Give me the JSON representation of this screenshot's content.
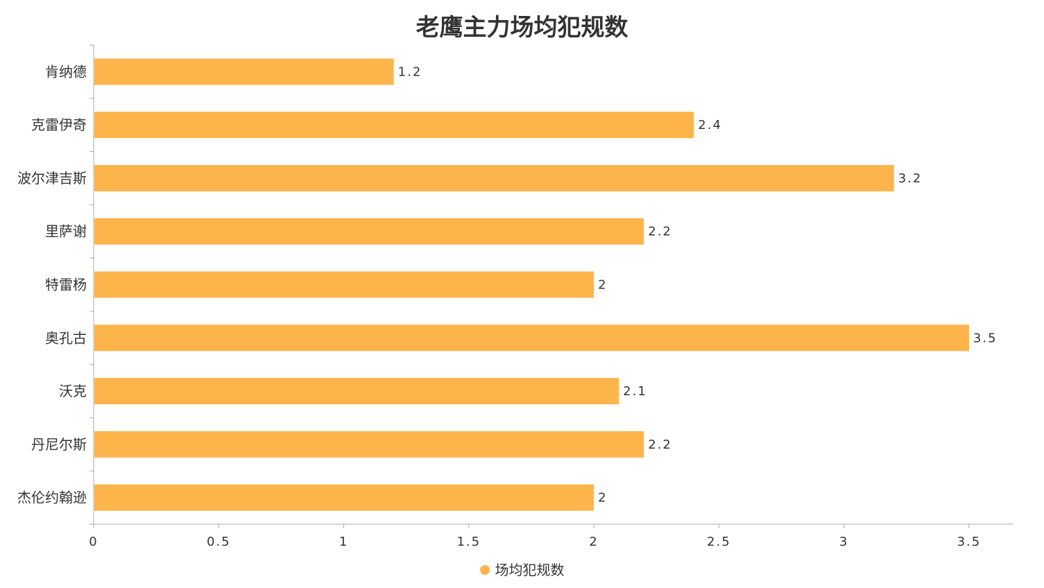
{
  "chart_data": {
    "type": "bar",
    "orientation": "horizontal",
    "title": "老鹰主力场均犯规数",
    "categories": [
      "肯纳德",
      "克雷伊奇",
      "波尔津吉斯",
      "里萨谢",
      "特雷杨",
      "奥孔古",
      "沃克",
      "丹尼尔斯",
      "杰伦约翰逊"
    ],
    "series": [
      {
        "name": "场均犯规数",
        "values": [
          1.2,
          2.4,
          3.2,
          2.2,
          2,
          3.5,
          2.1,
          2.2,
          2
        ],
        "color": "#FDB44B"
      }
    ],
    "x_ticks": [
      "0",
      "0.5",
      "1",
      "1.5",
      "2",
      "2.5",
      "3",
      "3.5"
    ],
    "xlim": [
      0,
      3.675
    ],
    "grid": false,
    "legend_position": "bottom",
    "data_labels": true
  }
}
